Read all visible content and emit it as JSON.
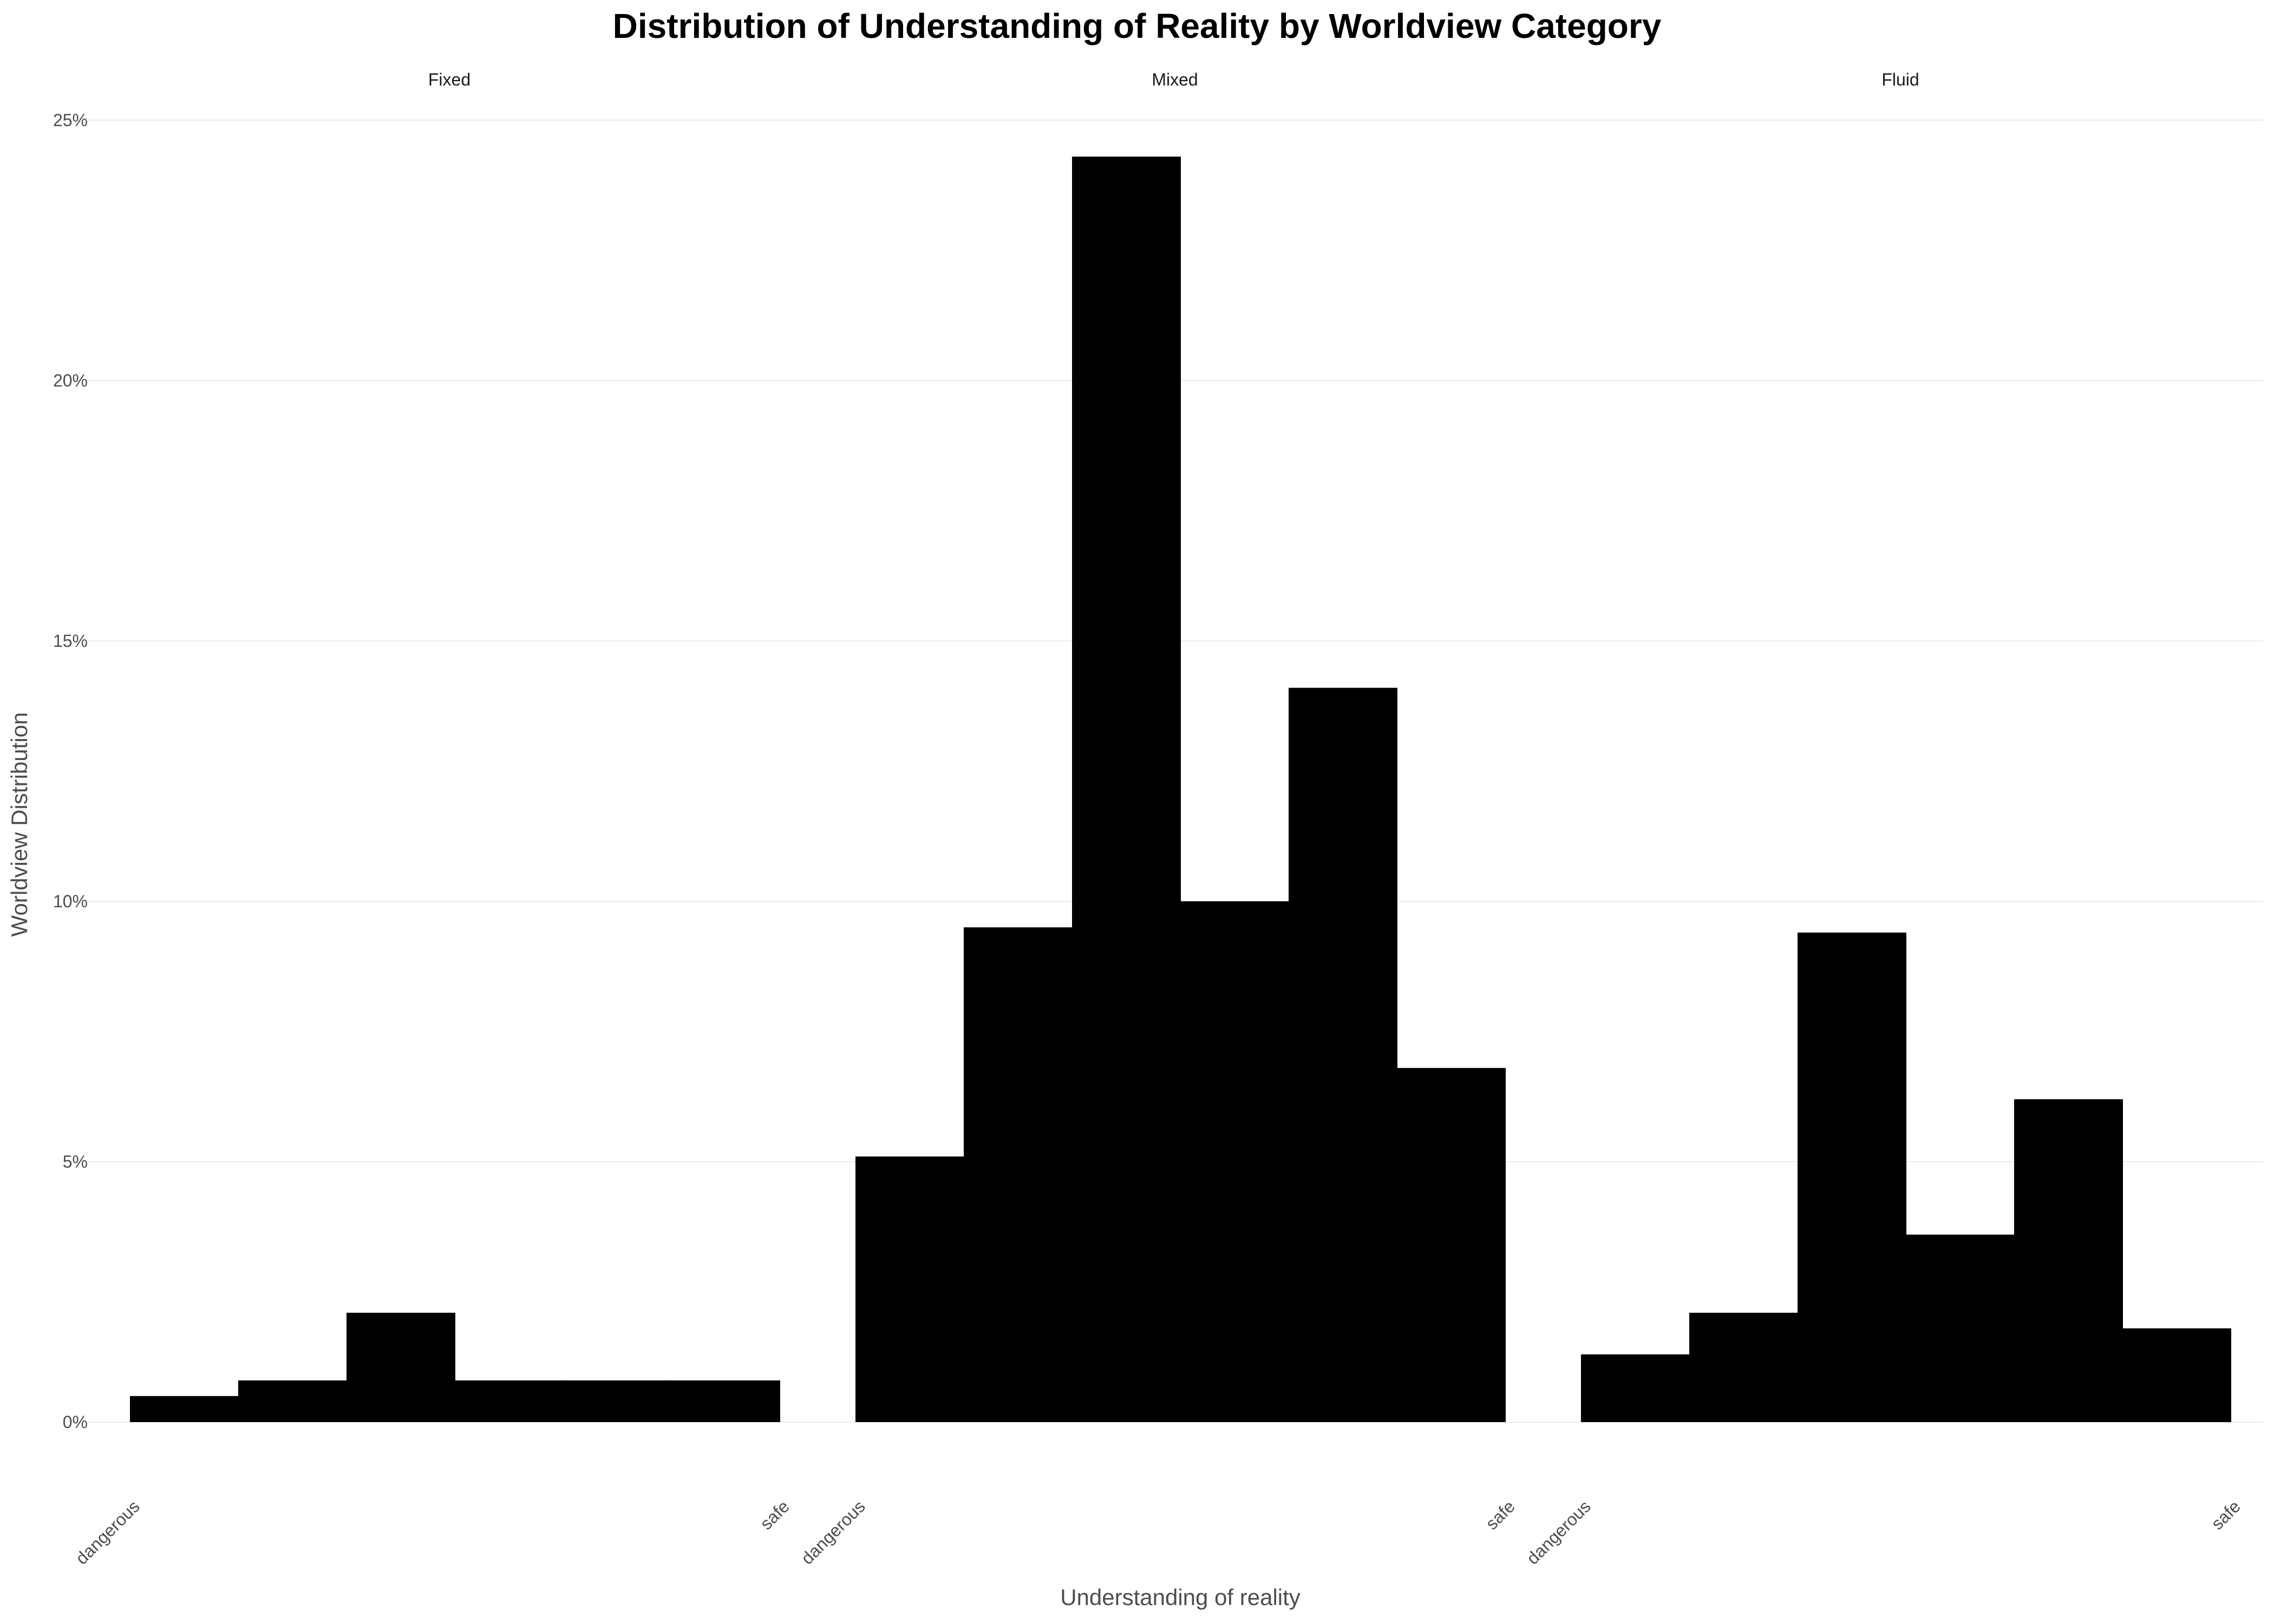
{
  "chart_data": {
    "type": "bar",
    "title": "Distribution of Understanding of Reality by Worldview Category",
    "xlabel": "Understanding of reality",
    "ylabel": "Worldview Distribution",
    "ylim": [
      0,
      25
    ],
    "yticks": [
      0,
      5,
      10,
      15,
      20,
      25
    ],
    "ytick_labels": [
      "0%",
      "5%",
      "10%",
      "15%",
      "20%",
      "25%"
    ],
    "xtick_labels": [
      "dangerous",
      "safe"
    ],
    "grid": true,
    "bar_color": "#000000",
    "bins": 6,
    "panels": [
      {
        "name": "Fixed",
        "values": [
          0.5,
          0.8,
          2.1,
          0.8,
          0.8,
          0.8
        ]
      },
      {
        "name": "Mixed",
        "values": [
          5.1,
          9.5,
          24.3,
          10.0,
          14.1,
          6.8
        ]
      },
      {
        "name": "Fluid",
        "values": [
          1.3,
          2.1,
          9.4,
          3.6,
          6.2,
          1.8
        ]
      }
    ]
  }
}
